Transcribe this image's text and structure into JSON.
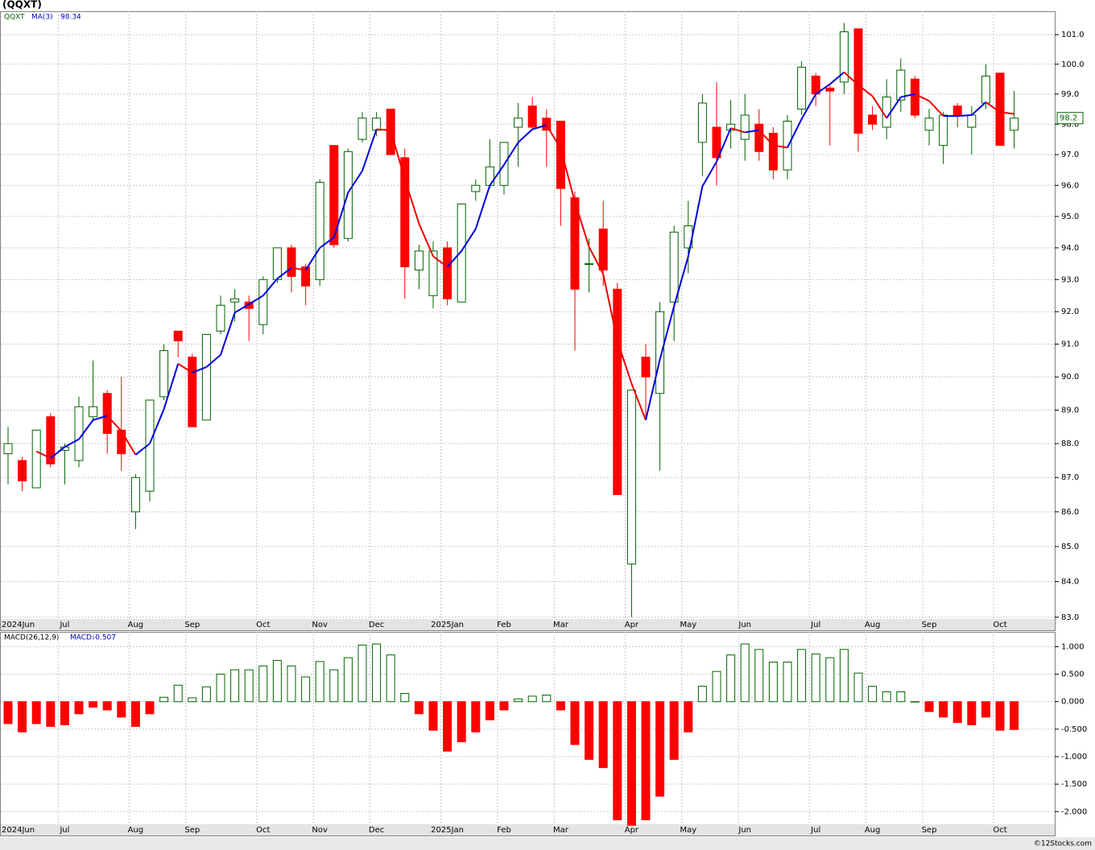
{
  "footer": "©12Stocks.com",
  "chart_data": [
    {
      "type": "candlestick",
      "title": "(QQXT)",
      "symbol": "QQXT",
      "categories": [
        "2024Jun",
        null,
        null,
        null,
        "Jul",
        null,
        null,
        null,
        null,
        "Aug",
        null,
        null,
        null,
        "Sep",
        null,
        null,
        null,
        null,
        "Oct",
        null,
        null,
        null,
        "Nov",
        null,
        null,
        null,
        "Dec",
        null,
        null,
        null,
        null,
        "2025Jan",
        null,
        null,
        null,
        "Feb",
        null,
        null,
        null,
        "Mar",
        null,
        null,
        null,
        null,
        "Apr",
        null,
        null,
        null,
        "May",
        null,
        null,
        null,
        "Jun",
        null,
        null,
        null,
        null,
        "Jul",
        null,
        null,
        null,
        "Aug",
        null,
        null,
        null,
        "Sep",
        null,
        null,
        null,
        null,
        "Oct",
        null
      ],
      "open": [
        87.7,
        87.5,
        86.7,
        88.8,
        87.8,
        87.5,
        88.8,
        89.5,
        88.4,
        86.0,
        86.6,
        89.4,
        91.4,
        90.6,
        88.7,
        91.4,
        92.3,
        92.3,
        91.6,
        93.0,
        94.0,
        93.4,
        93.0,
        97.3,
        94.3,
        97.5,
        97.8,
        98.5,
        96.9,
        93.3,
        92.5,
        94.0,
        92.3,
        95.8,
        96.0,
        96.0,
        97.9,
        98.6,
        98.2,
        98.1,
        95.6,
        93.5,
        94.6,
        92.7,
        84.5,
        90.6,
        89.5,
        92.3,
        94.0,
        97.4,
        97.9,
        97.8,
        97.5,
        98.0,
        97.7,
        96.5,
        98.5,
        99.6,
        99.2,
        99.4,
        101.2,
        98.3,
        97.9,
        98.8,
        99.5,
        97.8,
        97.3,
        98.6,
        97.9,
        98.7,
        99.7,
        97.8
      ],
      "high": [
        88.5,
        87.6,
        88.4,
        88.9,
        88.0,
        89.4,
        90.5,
        89.6,
        90.0,
        87.1,
        89.3,
        91.0,
        91.4,
        90.7,
        91.3,
        92.5,
        92.7,
        92.5,
        93.1,
        94.0,
        94.1,
        93.5,
        96.2,
        97.3,
        97.2,
        98.4,
        98.4,
        98.5,
        97.2,
        94.1,
        94.2,
        94.2,
        95.4,
        96.2,
        97.5,
        97.4,
        98.7,
        98.9,
        98.5,
        98.1,
        95.8,
        94.3,
        95.5,
        92.9,
        89.6,
        91.0,
        92.3,
        94.7,
        95.5,
        99.0,
        99.4,
        98.8,
        99.0,
        98.5,
        97.9,
        98.3,
        100.1,
        99.7,
        99.3,
        101.4,
        101.2,
        98.6,
        99.5,
        100.2,
        99.6,
        98.5,
        98.4,
        98.7,
        98.6,
        100.0,
        99.7,
        99.1
      ],
      "low": [
        86.8,
        86.6,
        86.7,
        87.3,
        86.8,
        87.3,
        88.7,
        87.7,
        87.2,
        85.5,
        86.3,
        89.3,
        90.6,
        88.5,
        88.7,
        91.3,
        91.7,
        91.1,
        91.3,
        92.9,
        92.6,
        92.2,
        92.8,
        94.0,
        94.2,
        97.4,
        97.6,
        97.0,
        92.4,
        92.7,
        92.1,
        92.2,
        92.3,
        95.5,
        95.9,
        95.7,
        96.6,
        97.8,
        96.6,
        94.7,
        90.8,
        92.6,
        92.8,
        86.5,
        83.0,
        88.8,
        87.2,
        91.1,
        93.2,
        96.3,
        96.0,
        97.2,
        96.8,
        96.8,
        96.2,
        96.2,
        98.3,
        98.6,
        97.3,
        99.0,
        97.1,
        97.8,
        97.5,
        98.4,
        98.2,
        97.3,
        96.7,
        97.9,
        97.0,
        98.5,
        97.3,
        97.2
      ],
      "close": [
        88.0,
        86.9,
        88.4,
        87.4,
        87.9,
        89.1,
        89.1,
        88.3,
        87.7,
        87.0,
        89.3,
        90.8,
        91.1,
        88.5,
        91.3,
        92.2,
        92.4,
        92.1,
        93.0,
        94.0,
        93.1,
        92.8,
        96.1,
        94.1,
        97.1,
        98.2,
        98.2,
        97.0,
        93.4,
        93.9,
        93.9,
        92.4,
        95.4,
        96.0,
        96.6,
        97.4,
        98.2,
        97.9,
        97.8,
        95.9,
        92.7,
        93.5,
        93.3,
        86.5,
        89.6,
        90.0,
        92.0,
        94.5,
        94.7,
        98.7,
        96.9,
        98.0,
        98.3,
        97.1,
        96.5,
        98.1,
        99.9,
        99.0,
        99.1,
        101.1,
        97.7,
        98.0,
        98.9,
        99.8,
        98.3,
        98.2,
        98.3,
        98.3,
        98.3,
        99.6,
        97.3,
        98.2
      ],
      "up_color": "#006400",
      "down_color": "#ff0000",
      "ma": {
        "name": "MA(3)",
        "up_color": "#0000dd",
        "down_color": "#ee0000",
        "values": [
          null,
          null,
          87.77,
          87.57,
          87.9,
          88.13,
          88.7,
          88.83,
          88.37,
          87.67,
          88.0,
          89.03,
          90.4,
          90.13,
          90.3,
          90.67,
          91.97,
          92.23,
          92.5,
          93.03,
          93.37,
          93.3,
          94.0,
          94.33,
          95.77,
          96.47,
          97.83,
          97.8,
          96.2,
          94.77,
          93.73,
          93.4,
          93.9,
          94.6,
          96.0,
          96.67,
          97.4,
          97.83,
          97.97,
          97.2,
          95.47,
          94.03,
          93.17,
          91.1,
          89.8,
          88.7,
          90.53,
          92.17,
          93.73,
          95.97,
          96.77,
          97.87,
          97.73,
          97.8,
          97.3,
          97.23,
          98.17,
          99.0,
          99.33,
          99.73,
          99.3,
          98.93,
          98.2,
          98.9,
          99.0,
          98.77,
          98.27,
          98.27,
          98.3,
          98.73,
          98.4,
          98.34
        ]
      },
      "log": true,
      "grid": true,
      "ylim": [
        82.95,
        101.8
      ],
      "yticks": [
        {
          "value": 83,
          "label": "83.0"
        },
        {
          "value": 84,
          "label": "84.0"
        },
        {
          "value": 85,
          "label": "85.0"
        },
        {
          "value": 86,
          "label": "86.0"
        },
        {
          "value": 87,
          "label": "87.0"
        },
        {
          "value": 88,
          "label": "88.0"
        },
        {
          "value": 89,
          "label": "89.0"
        },
        {
          "value": 90,
          "label": "90.0"
        },
        {
          "value": 91,
          "label": "91.0"
        },
        {
          "value": 92,
          "label": "92.0"
        },
        {
          "value": 93,
          "label": "93.0"
        },
        {
          "value": 94,
          "label": "94.0"
        },
        {
          "value": 95,
          "label": "95.0"
        },
        {
          "value": 96,
          "label": "96.0"
        },
        {
          "value": 97,
          "label": "97.0"
        },
        {
          "value": 98,
          "label": "98.0"
        },
        {
          "value": 99,
          "label": "99.0"
        },
        {
          "value": 100,
          "label": "100.0"
        },
        {
          "value": 101,
          "label": "101.0"
        }
      ]
    },
    {
      "type": "bar",
      "title": "MACD(26,12,9)",
      "value_name": "MACD:",
      "categories": [
        "2024Jun",
        null,
        null,
        null,
        "Jul",
        null,
        null,
        null,
        null,
        "Aug",
        null,
        null,
        null,
        "Sep",
        null,
        null,
        null,
        null,
        "Oct",
        null,
        null,
        null,
        "Nov",
        null,
        null,
        null,
        "Dec",
        null,
        null,
        null,
        null,
        "2025Jan",
        null,
        null,
        null,
        "Feb",
        null,
        null,
        null,
        "Mar",
        null,
        null,
        null,
        null,
        "Apr",
        null,
        null,
        null,
        "May",
        null,
        null,
        null,
        "Jun",
        null,
        null,
        null,
        null,
        "Jul",
        null,
        null,
        null,
        "Aug",
        null,
        null,
        null,
        "Sep",
        null,
        null,
        null,
        null,
        "Oct",
        null
      ],
      "values": [
        -0.4,
        -0.55,
        -0.4,
        -0.45,
        -0.42,
        -0.22,
        -0.1,
        -0.15,
        -0.28,
        -0.45,
        -0.22,
        0.08,
        0.3,
        0.07,
        0.27,
        0.5,
        0.58,
        0.58,
        0.65,
        0.75,
        0.65,
        0.45,
        0.73,
        0.58,
        0.8,
        1.03,
        1.05,
        0.85,
        0.15,
        -0.22,
        -0.52,
        -0.9,
        -0.73,
        -0.55,
        -0.33,
        -0.15,
        0.05,
        0.1,
        0.12,
        -0.15,
        -0.78,
        -1.05,
        -1.2,
        -2.15,
        -2.25,
        -2.15,
        -1.72,
        -1.05,
        -0.55,
        0.28,
        0.55,
        0.85,
        1.05,
        0.95,
        0.72,
        0.72,
        0.95,
        0.87,
        0.8,
        0.95,
        0.52,
        0.28,
        0.18,
        0.18,
        0.0,
        -0.18,
        -0.28,
        -0.38,
        -0.42,
        -0.28,
        -0.52,
        -0.507
      ],
      "up_color": "#006400",
      "down_color": "#ff0000",
      "grid": true,
      "ylim": [
        -2.23,
        1.27
      ],
      "yticks": [
        {
          "value": 1,
          "label": "1.000"
        },
        {
          "value": 0.5,
          "label": "0.500"
        },
        {
          "value": 0,
          "label": "0.000"
        },
        {
          "value": -0.5,
          "label": "-0.500"
        },
        {
          "value": -1,
          "label": "-1.000"
        },
        {
          "value": -1.5,
          "label": "-1.500"
        },
        {
          "value": -2,
          "label": "-2.000"
        }
      ]
    }
  ]
}
